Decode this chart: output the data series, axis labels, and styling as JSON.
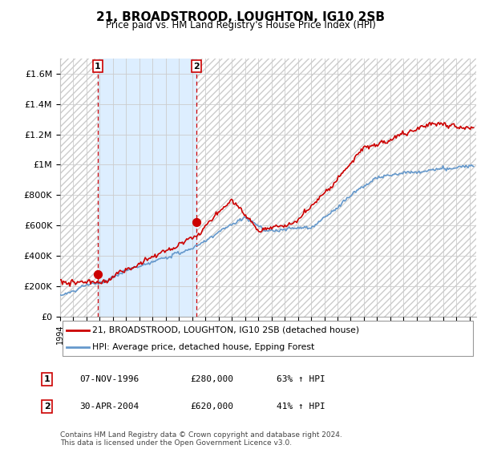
{
  "title": "21, BROADSTROOD, LOUGHTON, IG10 2SB",
  "subtitle": "Price paid vs. HM Land Registry's House Price Index (HPI)",
  "ylim": [
    0,
    1700000
  ],
  "yticks": [
    0,
    200000,
    400000,
    600000,
    800000,
    1000000,
    1200000,
    1400000,
    1600000
  ],
  "ytick_labels": [
    "£0",
    "£200K",
    "£400K",
    "£600K",
    "£800K",
    "£1M",
    "£1.2M",
    "£1.4M",
    "£1.6M"
  ],
  "sale1_price": 280000,
  "sale1_x": 1996.85,
  "sale2_price": 620000,
  "sale2_x": 2004.33,
  "hpi_color": "#6699cc",
  "price_color": "#cc0000",
  "vline_color": "#cc0000",
  "blue_fill_color": "#ddeeff",
  "hatch_color": "#cccccc",
  "grid_color": "#cccccc",
  "legend_label_red": "21, BROADSTROOD, LOUGHTON, IG10 2SB (detached house)",
  "legend_label_blue": "HPI: Average price, detached house, Epping Forest",
  "table_row1": [
    "1",
    "07-NOV-1996",
    "£280,000",
    "63% ↑ HPI"
  ],
  "table_row2": [
    "2",
    "30-APR-2004",
    "£620,000",
    "41% ↑ HPI"
  ],
  "footer": "Contains HM Land Registry data © Crown copyright and database right 2024.\nThis data is licensed under the Open Government Licence v3.0.",
  "xmin": 1994.0,
  "xmax": 2025.5
}
